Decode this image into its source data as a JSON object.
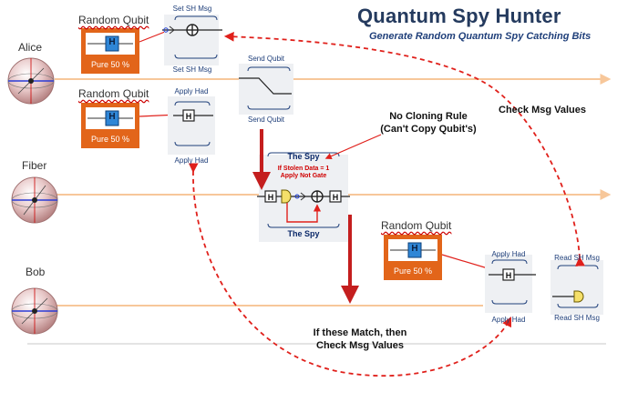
{
  "title": "Quantum Spy Hunter",
  "subtitle": "Generate Random Quantum Spy Catching Bits",
  "wires": {
    "alice": "Alice",
    "fiber": "Fiber",
    "bob": "Bob"
  },
  "random_qubit": {
    "label": "Random Qubit",
    "gate": "H",
    "caption": "Pure 50 %"
  },
  "gates": {
    "set_sh_msg": "Set SH Msg",
    "send_qubit": "Send Qubit",
    "apply_had": "Apply Had",
    "read_sh_msg": "Read SH Msg",
    "had_symbol": "H"
  },
  "spy": {
    "title": "The Spy",
    "note_line1": "If Stolen Data = 1",
    "note_line2": "Apply Not Gate"
  },
  "notes": {
    "no_cloning_line1": "No Cloning Rule",
    "no_cloning_line2": "(Can't Copy Qubit's)",
    "check_msg": "Check Msg Values",
    "match_line1": "If these Match, then",
    "match_line2": "Check Msg Values"
  },
  "colors": {
    "wire": "#f7c79a",
    "orange_box": "#e2651a",
    "h_gate": "#2f86d6",
    "red_arrow": "#e0201b",
    "dark_red": "#c41e1e"
  }
}
